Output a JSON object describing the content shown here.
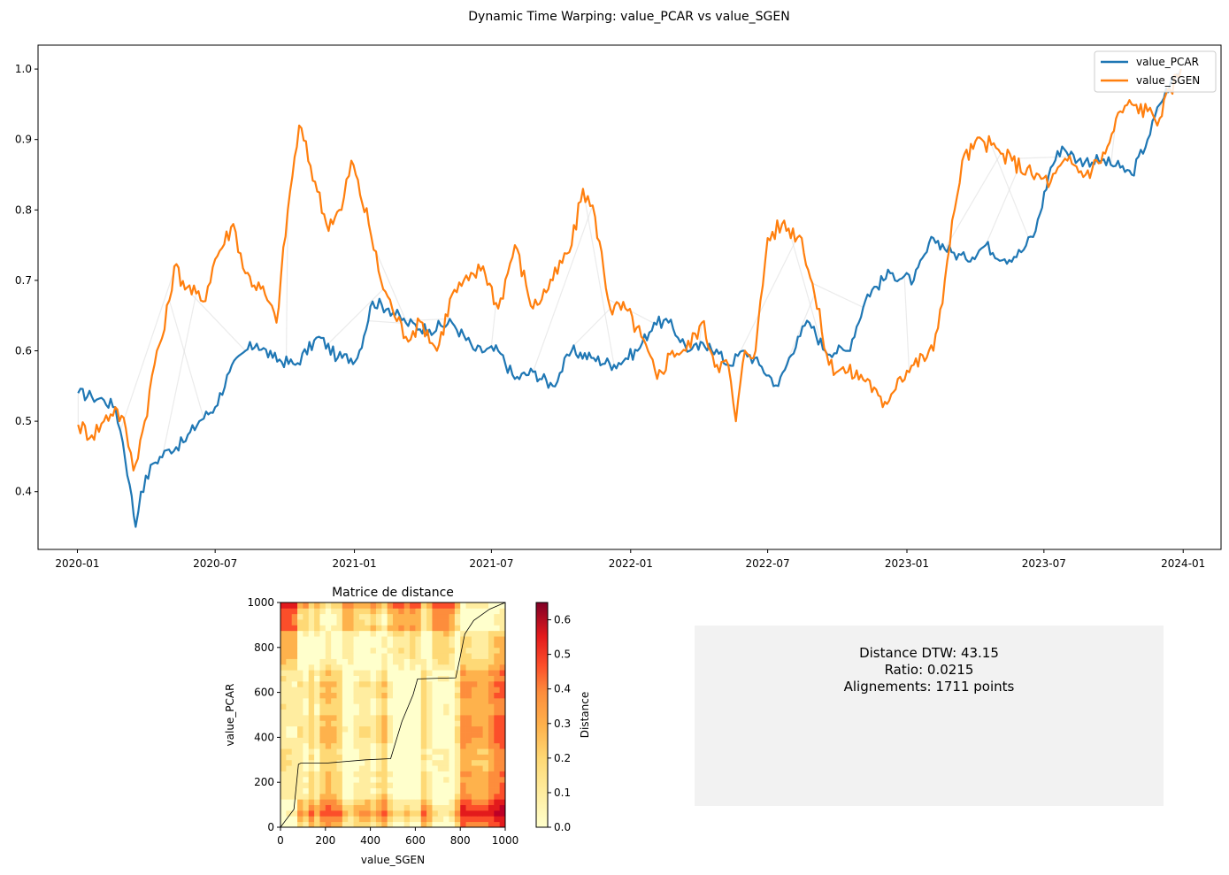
{
  "title": "Dynamic Time Warping: value_PCAR vs value_SGEN",
  "colors": {
    "pcar": "#1f77b4",
    "sgen": "#ff7f0e",
    "alignment": "#dddddd",
    "stats_box": "#f2f2f2"
  },
  "chart_data": [
    {
      "type": "line",
      "x_ticks": [
        "2020-01",
        "2020-07",
        "2021-01",
        "2021-07",
        "2022-01",
        "2022-07",
        "2023-01",
        "2023-07",
        "2024-01"
      ],
      "x_range": [
        "2019-11-10",
        "2024-02-20"
      ],
      "y_ticks": [
        "0.4",
        "0.5",
        "0.6",
        "0.7",
        "0.8",
        "0.9",
        "1.0"
      ],
      "ylim": [
        0.318,
        1.034
      ],
      "legend_position": "upper right",
      "alignment_lines": "light grey DTW alignment connectors between the two series",
      "series": [
        {
          "name": "value_PCAR",
          "color": "#1f77b4",
          "points": [
            [
              "2020-01-02",
              0.54
            ],
            [
              "2020-01-20",
              0.535
            ],
            [
              "2020-02-05",
              0.53
            ],
            [
              "2020-02-20",
              0.52
            ],
            [
              "2020-03-01",
              0.47
            ],
            [
              "2020-03-10",
              0.41
            ],
            [
              "2020-03-18",
              0.35
            ],
            [
              "2020-03-25",
              0.4
            ],
            [
              "2020-04-10",
              0.44
            ],
            [
              "2020-05-01",
              0.46
            ],
            [
              "2020-05-20",
              0.47
            ],
            [
              "2020-06-10",
              0.5
            ],
            [
              "2020-07-01",
              0.52
            ],
            [
              "2020-07-20",
              0.57
            ],
            [
              "2020-08-10",
              0.6
            ],
            [
              "2020-08-25",
              0.61
            ],
            [
              "2020-09-15",
              0.59
            ],
            [
              "2020-10-15",
              0.58
            ],
            [
              "2020-11-15",
              0.62
            ],
            [
              "2020-12-10",
              0.59
            ],
            [
              "2021-01-05",
              0.59
            ],
            [
              "2021-01-25",
              0.67
            ],
            [
              "2021-02-15",
              0.66
            ],
            [
              "2021-03-10",
              0.64
            ],
            [
              "2021-04-10",
              0.63
            ],
            [
              "2021-05-10",
              0.64
            ],
            [
              "2021-06-10",
              0.6
            ],
            [
              "2021-07-10",
              0.6
            ],
            [
              "2021-08-01",
              0.56
            ],
            [
              "2021-08-25",
              0.57
            ],
            [
              "2021-09-20",
              0.55
            ],
            [
              "2021-10-15",
              0.6
            ],
            [
              "2021-11-10",
              0.59
            ],
            [
              "2021-12-10",
              0.58
            ],
            [
              "2022-01-10",
              0.6
            ],
            [
              "2022-02-01",
              0.64
            ],
            [
              "2022-02-20",
              0.64
            ],
            [
              "2022-03-20",
              0.6
            ],
            [
              "2022-04-15",
              0.61
            ],
            [
              "2022-05-10",
              0.58
            ],
            [
              "2022-06-01",
              0.6
            ],
            [
              "2022-06-20",
              0.58
            ],
            [
              "2022-07-15",
              0.55
            ],
            [
              "2022-08-10",
              0.62
            ],
            [
              "2022-08-25",
              0.64
            ],
            [
              "2022-09-15",
              0.6
            ],
            [
              "2022-10-15",
              0.6
            ],
            [
              "2022-11-10",
              0.68
            ],
            [
              "2022-12-10",
              0.71
            ],
            [
              "2023-01-10",
              0.7
            ],
            [
              "2023-02-05",
              0.76
            ],
            [
              "2023-03-01",
              0.74
            ],
            [
              "2023-03-20",
              0.73
            ],
            [
              "2023-04-15",
              0.75
            ],
            [
              "2023-05-10",
              0.73
            ],
            [
              "2023-06-01",
              0.74
            ],
            [
              "2023-06-20",
              0.77
            ],
            [
              "2023-07-10",
              0.86
            ],
            [
              "2023-07-25",
              0.89
            ],
            [
              "2023-08-15",
              0.87
            ],
            [
              "2023-09-15",
              0.87
            ],
            [
              "2023-10-10",
              0.86
            ],
            [
              "2023-10-25",
              0.85
            ],
            [
              "2023-11-15",
              0.9
            ],
            [
              "2023-12-01",
              0.95
            ],
            [
              "2023-12-15",
              0.98
            ],
            [
              "2023-12-29",
              1.0
            ]
          ]
        },
        {
          "name": "value_SGEN",
          "color": "#ff7f0e",
          "points": [
            [
              "2020-01-02",
              0.495
            ],
            [
              "2020-01-20",
              0.48
            ],
            [
              "2020-02-05",
              0.5
            ],
            [
              "2020-02-20",
              0.52
            ],
            [
              "2020-03-05",
              0.49
            ],
            [
              "2020-03-15",
              0.43
            ],
            [
              "2020-03-30",
              0.5
            ],
            [
              "2020-04-15",
              0.6
            ],
            [
              "2020-04-25",
              0.63
            ],
            [
              "2020-05-08",
              0.72
            ],
            [
              "2020-05-25",
              0.69
            ],
            [
              "2020-06-15",
              0.67
            ],
            [
              "2020-07-01",
              0.73
            ],
            [
              "2020-07-25",
              0.78
            ],
            [
              "2020-08-10",
              0.71
            ],
            [
              "2020-09-05",
              0.68
            ],
            [
              "2020-09-20",
              0.64
            ],
            [
              "2020-10-05",
              0.8
            ],
            [
              "2020-10-20",
              0.92
            ],
            [
              "2020-11-10",
              0.84
            ],
            [
              "2020-11-25",
              0.78
            ],
            [
              "2020-12-15",
              0.8
            ],
            [
              "2020-12-28",
              0.87
            ],
            [
              "2021-01-20",
              0.78
            ],
            [
              "2021-02-05",
              0.7
            ],
            [
              "2021-02-20",
              0.66
            ],
            [
              "2021-03-10",
              0.62
            ],
            [
              "2021-04-01",
              0.64
            ],
            [
              "2021-04-20",
              0.6
            ],
            [
              "2021-05-10",
              0.68
            ],
            [
              "2021-06-01",
              0.7
            ],
            [
              "2021-06-20",
              0.72
            ],
            [
              "2021-07-10",
              0.66
            ],
            [
              "2021-08-01",
              0.75
            ],
            [
              "2021-08-25",
              0.66
            ],
            [
              "2021-09-20",
              0.7
            ],
            [
              "2021-10-15",
              0.75
            ],
            [
              "2021-10-30",
              0.83
            ],
            [
              "2021-11-15",
              0.79
            ],
            [
              "2021-12-05",
              0.66
            ],
            [
              "2021-12-25",
              0.66
            ],
            [
              "2022-01-15",
              0.62
            ],
            [
              "2022-02-05",
              0.56
            ],
            [
              "2022-02-25",
              0.6
            ],
            [
              "2022-03-15",
              0.6
            ],
            [
              "2022-04-05",
              0.64
            ],
            [
              "2022-04-25",
              0.58
            ],
            [
              "2022-05-10",
              0.58
            ],
            [
              "2022-05-20",
              0.5
            ],
            [
              "2022-06-01",
              0.6
            ],
            [
              "2022-06-15",
              0.6
            ],
            [
              "2022-07-01",
              0.76
            ],
            [
              "2022-07-20",
              0.78
            ],
            [
              "2022-08-15",
              0.76
            ],
            [
              "2022-09-01",
              0.68
            ],
            [
              "2022-09-20",
              0.58
            ],
            [
              "2022-10-15",
              0.57
            ],
            [
              "2022-11-10",
              0.56
            ],
            [
              "2022-11-30",
              0.52
            ],
            [
              "2022-12-20",
              0.56
            ],
            [
              "2023-01-10",
              0.58
            ],
            [
              "2023-02-05",
              0.6
            ],
            [
              "2023-02-20",
              0.7
            ],
            [
              "2023-03-05",
              0.8
            ],
            [
              "2023-03-15",
              0.87
            ],
            [
              "2023-04-10",
              0.9
            ],
            [
              "2023-05-05",
              0.88
            ],
            [
              "2023-05-20",
              0.87
            ],
            [
              "2023-06-15",
              0.85
            ],
            [
              "2023-07-10",
              0.84
            ],
            [
              "2023-08-01",
              0.87
            ],
            [
              "2023-08-25",
              0.85
            ],
            [
              "2023-09-20",
              0.88
            ],
            [
              "2023-10-10",
              0.94
            ],
            [
              "2023-10-25",
              0.95
            ],
            [
              "2023-11-15",
              0.94
            ],
            [
              "2023-12-01",
              0.93
            ],
            [
              "2023-12-15",
              0.97
            ],
            [
              "2023-12-29",
              1.0
            ]
          ]
        }
      ]
    },
    {
      "type": "heatmap",
      "title": "Matrice de distance",
      "xlabel": "value_SGEN",
      "ylabel": "value_PCAR",
      "x_ticks": [
        0,
        200,
        400,
        600,
        800,
        1000
      ],
      "y_ticks": [
        0,
        200,
        400,
        600,
        800,
        1000
      ],
      "xlim": [
        0,
        1000
      ],
      "ylim": [
        0,
        1000
      ],
      "colormap": "YlOrRd",
      "colorbar": {
        "label": "Distance",
        "ticks": [
          "0.0",
          "0.1",
          "0.2",
          "0.3",
          "0.4",
          "0.5",
          "0.6"
        ],
        "range": [
          0,
          0.65
        ]
      },
      "warping_path": [
        [
          0,
          0
        ],
        [
          60,
          80
        ],
        [
          80,
          280
        ],
        [
          90,
          285
        ],
        [
          200,
          285
        ],
        [
          380,
          300
        ],
        [
          490,
          305
        ],
        [
          540,
          470
        ],
        [
          590,
          590
        ],
        [
          610,
          660
        ],
        [
          780,
          665
        ],
        [
          800,
          760
        ],
        [
          820,
          860
        ],
        [
          860,
          920
        ],
        [
          930,
          970
        ],
        [
          1000,
          1000
        ]
      ]
    }
  ],
  "stats": {
    "distance": "Distance DTW: 43.15",
    "ratio": "Ratio: 0.0215",
    "alignments": "Alignements: 1711 points"
  }
}
